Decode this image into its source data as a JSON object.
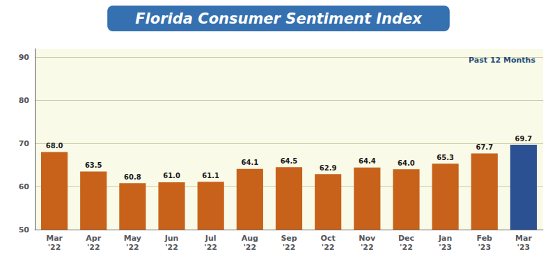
{
  "chart_data": {
    "type": "bar",
    "title": "Florida Consumer Sentiment Index",
    "subtitle": "Past 12 Months",
    "categories": [
      "Mar\n'22",
      "Apr\n'22",
      "May\n'22",
      "Jun\n'22",
      "Jul\n'22",
      "Aug\n'22",
      "Sep\n'22",
      "Oct\n'22",
      "Nov\n'22",
      "Dec\n'22",
      "Jan\n'23",
      "Feb\n'23",
      "Mar\n'23"
    ],
    "values": [
      68.0,
      63.5,
      60.8,
      61.0,
      61.1,
      64.1,
      64.5,
      62.9,
      64.4,
      64.0,
      65.3,
      67.7,
      69.7
    ],
    "value_labels": [
      "68.0",
      "63.5",
      "60.8",
      "61.0",
      "61.1",
      "64.1",
      "64.5",
      "62.9",
      "64.4",
      "64.0",
      "65.3",
      "67.7",
      "69.7"
    ],
    "colors": [
      "#C8621A",
      "#C8621A",
      "#C8621A",
      "#C8621A",
      "#C8621A",
      "#C8621A",
      "#C8621A",
      "#C8621A",
      "#C8621A",
      "#C8621A",
      "#C8621A",
      "#C8621A",
      "#2B5192"
    ],
    "ylim": [
      50,
      92
    ],
    "yticks": [
      50,
      60,
      70,
      80,
      90
    ],
    "grid": true,
    "data_labels": true
  }
}
